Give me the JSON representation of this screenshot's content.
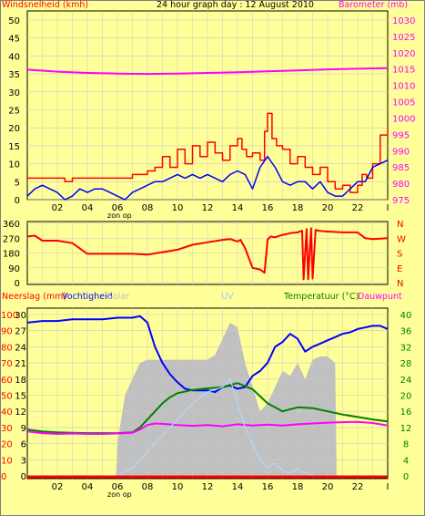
{
  "header": {
    "wind_label": "Windsnelheid (kmh)",
    "title": "24 hour graph day : 12 August 2010",
    "baro_label": "Barometer (mb)"
  },
  "bottom_header": {
    "rain_label": "Neerslag (mm)",
    "hum_label": "Vochtigheid",
    "solar_label": "Solar",
    "uv_label": "UV",
    "temp_label": "Temperatuur (°C)",
    "dew_label": "Dauwpunt"
  },
  "zon_op": "zon op",
  "colors": {
    "background": "#ffff99",
    "plot_bg": "#ffff99",
    "grid": "#c8c8c8",
    "wind_gust": "#ff0000",
    "wind_avg": "#0000ff",
    "barometer": "#ff00ff",
    "direction": "#ff0000",
    "humidity": "#0000ff",
    "temperature": "#008000",
    "dewpoint": "#ff00ff",
    "solar": "#c0c0c0",
    "uv": "#b0d8ff",
    "rain": "#ff0000"
  },
  "chart_data": [
    {
      "type": "line",
      "panel": "wind-barometer",
      "x_ticks": [
        "02",
        "04",
        "06",
        "08",
        "10",
        "12",
        "14",
        "16",
        "18",
        "20",
        "22",
        "I"
      ],
      "y_left_ticks": [
        "0",
        "5",
        "10",
        "15",
        "20",
        "25",
        "30",
        "35",
        "40",
        "45",
        "50"
      ],
      "y_right_ticks": [
        "975",
        "980",
        "985",
        "990",
        "995",
        "1000",
        "1005",
        "1010",
        "1015",
        "1020",
        "1025",
        "1030"
      ],
      "ylim_left": [
        0,
        50
      ],
      "ylim_right": [
        975,
        1030
      ],
      "series": [
        {
          "name": "Windsnelheid (kmh)",
          "axis": "left",
          "role": "gust",
          "x": [
            0,
            1,
            2,
            2.5,
            3,
            4,
            5,
            6,
            6.5,
            7,
            8,
            8.5,
            9,
            9.5,
            10,
            10.5,
            11,
            11.5,
            12,
            12.5,
            13,
            13.5,
            14,
            14.3,
            14.6,
            15,
            15.5,
            15.8,
            16,
            16.3,
            16.6,
            17,
            17.5,
            18,
            18.5,
            19,
            19.5,
            20,
            20.5,
            21,
            21.5,
            22,
            22.3,
            22.6,
            23,
            23.5,
            24
          ],
          "values": [
            6,
            6,
            6,
            5,
            6,
            6,
            6,
            6,
            6,
            7,
            8,
            9,
            12,
            9,
            14,
            10,
            15,
            12,
            16,
            13,
            11,
            15,
            17,
            14,
            12,
            13,
            11,
            19,
            24,
            17,
            15,
            14,
            10,
            12,
            9,
            7,
            9,
            5,
            3,
            4,
            2,
            4,
            7,
            6,
            10,
            18,
            20
          ]
        },
        {
          "name": "Windsnelheid avg",
          "axis": "left",
          "role": "average",
          "x": [
            0,
            0.5,
            1,
            1.5,
            2,
            2.5,
            3,
            3.5,
            4,
            4.5,
            5,
            5.5,
            6,
            6.5,
            7,
            7.5,
            8,
            8.5,
            9,
            9.5,
            10,
            10.5,
            11,
            11.5,
            12,
            12.5,
            13,
            13.5,
            14,
            14.5,
            15,
            15.5,
            16,
            16.5,
            17,
            17.5,
            18,
            18.5,
            19,
            19.5,
            20,
            20.5,
            21,
            21.5,
            22,
            22.5,
            23,
            23.5,
            24
          ],
          "values": [
            1,
            3,
            4,
            3,
            2,
            0,
            1,
            3,
            2,
            3,
            3,
            2,
            1,
            0,
            2,
            3,
            4,
            5,
            5,
            6,
            7,
            6,
            7,
            6,
            7,
            6,
            5,
            7,
            8,
            7,
            3,
            9,
            12,
            9,
            5,
            4,
            5,
            5,
            3,
            5,
            2,
            1,
            1,
            3,
            5,
            5,
            9,
            10,
            11
          ]
        },
        {
          "name": "Barometer (mb)",
          "axis": "right",
          "role": "barometer",
          "x": [
            0,
            2,
            4,
            6,
            8,
            10,
            12,
            14,
            16,
            18,
            20,
            22,
            24
          ],
          "values": [
            1014.8,
            1014.2,
            1013.8,
            1013.6,
            1013.5,
            1013.6,
            1013.8,
            1014.0,
            1014.3,
            1014.6,
            1014.9,
            1015.1,
            1015.3
          ]
        }
      ]
    },
    {
      "type": "line",
      "panel": "wind-direction",
      "y_left_ticks": [
        "360",
        "270",
        "180",
        "90",
        "0"
      ],
      "y_right_ticks": [
        "N",
        "W",
        "S",
        "E",
        "N"
      ],
      "ylim": [
        0,
        360
      ],
      "series": [
        {
          "name": "direction",
          "x": [
            0,
            0.5,
            1,
            2,
            3,
            4,
            5,
            6,
            7,
            8,
            9,
            10,
            11,
            12,
            13,
            13.5,
            14,
            14.2,
            14.5,
            15,
            15.5,
            15.8,
            16,
            16.2,
            16.5,
            17,
            17.5,
            18,
            18.3,
            18.4,
            18.6,
            18.7,
            18.9,
            19,
            19.2,
            19.4,
            20,
            21,
            22,
            22.5,
            23,
            24
          ],
          "values": [
            280,
            285,
            255,
            255,
            240,
            175,
            175,
            175,
            175,
            170,
            185,
            200,
            230,
            245,
            260,
            265,
            250,
            260,
            210,
            90,
            80,
            60,
            260,
            280,
            275,
            290,
            300,
            305,
            315,
            20,
            325,
            20,
            330,
            25,
            320,
            315,
            310,
            305,
            305,
            270,
            265,
            270
          ]
        }
      ]
    },
    {
      "type": "line",
      "panel": "rain-humidity-temperature",
      "y_left_ticks": [
        "0",
        "10",
        "20",
        "30",
        "40",
        "50",
        "60",
        "70",
        "80",
        "90",
        "100"
      ],
      "y_left2_ticks": [
        "0",
        "3",
        "6",
        "9",
        "12",
        "15",
        "18",
        "21",
        "24",
        "27",
        "30"
      ],
      "y_right_ticks": [
        "0",
        "4",
        "8",
        "12",
        "16",
        "20",
        "24",
        "28",
        "32",
        "36",
        "40"
      ],
      "ylim_left": [
        0,
        100
      ],
      "ylim_right": [
        0,
        40
      ],
      "series": [
        {
          "name": "Vochtigheid",
          "axis": "left",
          "role": "humidity",
          "x": [
            0,
            1,
            2,
            3,
            4,
            5,
            6,
            7,
            7.5,
            8,
            8.5,
            9,
            9.5,
            10,
            10.5,
            11,
            11.5,
            12,
            12.5,
            13,
            13.5,
            14,
            14.5,
            15,
            15.5,
            16,
            16.5,
            17,
            17.5,
            18,
            18.5,
            19,
            19.5,
            20,
            20.5,
            21,
            21.5,
            22,
            22.5,
            23,
            23.5,
            24
          ],
          "values": [
            95,
            96,
            96,
            97,
            97,
            97,
            98,
            98,
            99,
            95,
            80,
            70,
            63,
            58,
            54,
            53,
            53,
            53,
            52,
            55,
            56,
            54,
            55,
            62,
            65,
            70,
            80,
            83,
            88,
            85,
            77,
            80,
            82,
            84,
            86,
            88,
            89,
            91,
            92,
            93,
            93,
            91
          ]
        },
        {
          "name": "Temperatuur (°C)",
          "axis": "right",
          "role": "temperature",
          "x": [
            0,
            1,
            2,
            3,
            4,
            5,
            6,
            7,
            7.5,
            8,
            8.5,
            9,
            9.5,
            10,
            11,
            12,
            13,
            14,
            15,
            16,
            17,
            18,
            19,
            20,
            21,
            22,
            23,
            24
          ],
          "values": [
            11.5,
            11,
            10.8,
            10.7,
            10.6,
            10.6,
            10.6,
            10.8,
            12,
            14,
            16,
            18,
            19.5,
            20.5,
            21.3,
            21.7,
            22,
            23,
            21.5,
            18,
            16,
            17,
            16.8,
            16,
            15.2,
            14.6,
            14,
            13.5
          ]
        },
        {
          "name": "Dauwpunt",
          "axis": "right",
          "role": "dewpoint",
          "x": [
            0,
            1,
            2,
            3,
            4,
            5,
            6,
            7,
            7.5,
            8,
            8.5,
            9,
            10,
            11,
            12,
            13,
            14,
            15,
            16,
            17,
            18,
            19,
            20,
            21,
            22,
            23,
            24
          ],
          "values": [
            11,
            10.6,
            10.4,
            10.5,
            10.4,
            10.4,
            10.5,
            10.7,
            11.5,
            12.6,
            13,
            12.9,
            12.6,
            12.4,
            12.6,
            12.3,
            12.8,
            12.5,
            12.7,
            12.5,
            12.8,
            13,
            13.2,
            13.3,
            13.4,
            13.1,
            12.5
          ]
        },
        {
          "name": "Solar",
          "axis": "left",
          "role": "solar-area",
          "x": [
            0,
            5.9,
            6,
            6.5,
            7,
            7.5,
            8,
            9,
            10,
            11,
            12,
            12.5,
            13,
            13.5,
            14,
            14.5,
            15,
            15.5,
            16,
            16.5,
            17,
            17.5,
            18,
            18.5,
            19,
            19.5,
            20,
            20.5,
            20.6,
            24
          ],
          "values": [
            0,
            0,
            20,
            50,
            60,
            70,
            72,
            72,
            72,
            72,
            72,
            75,
            85,
            95,
            92,
            70,
            55,
            40,
            45,
            55,
            65,
            62,
            70,
            60,
            72,
            74,
            74,
            70,
            0,
            0
          ]
        },
        {
          "name": "UV",
          "axis": "left",
          "role": "uv",
          "x": [
            6,
            7,
            8,
            9,
            10,
            11,
            12,
            13,
            13.5,
            14,
            14.5,
            15,
            15.5,
            16,
            16.5,
            17,
            17.5,
            18,
            18.5,
            19
          ],
          "values": [
            0,
            5,
            15,
            25,
            35,
            45,
            52,
            55,
            60,
            45,
            30,
            20,
            10,
            5,
            8,
            3,
            2,
            4,
            2,
            0
          ]
        },
        {
          "name": "Neerslag (mm)",
          "axis": "left2",
          "role": "rain",
          "x": [
            0,
            24
          ],
          "values": [
            0,
            0
          ]
        }
      ]
    }
  ]
}
